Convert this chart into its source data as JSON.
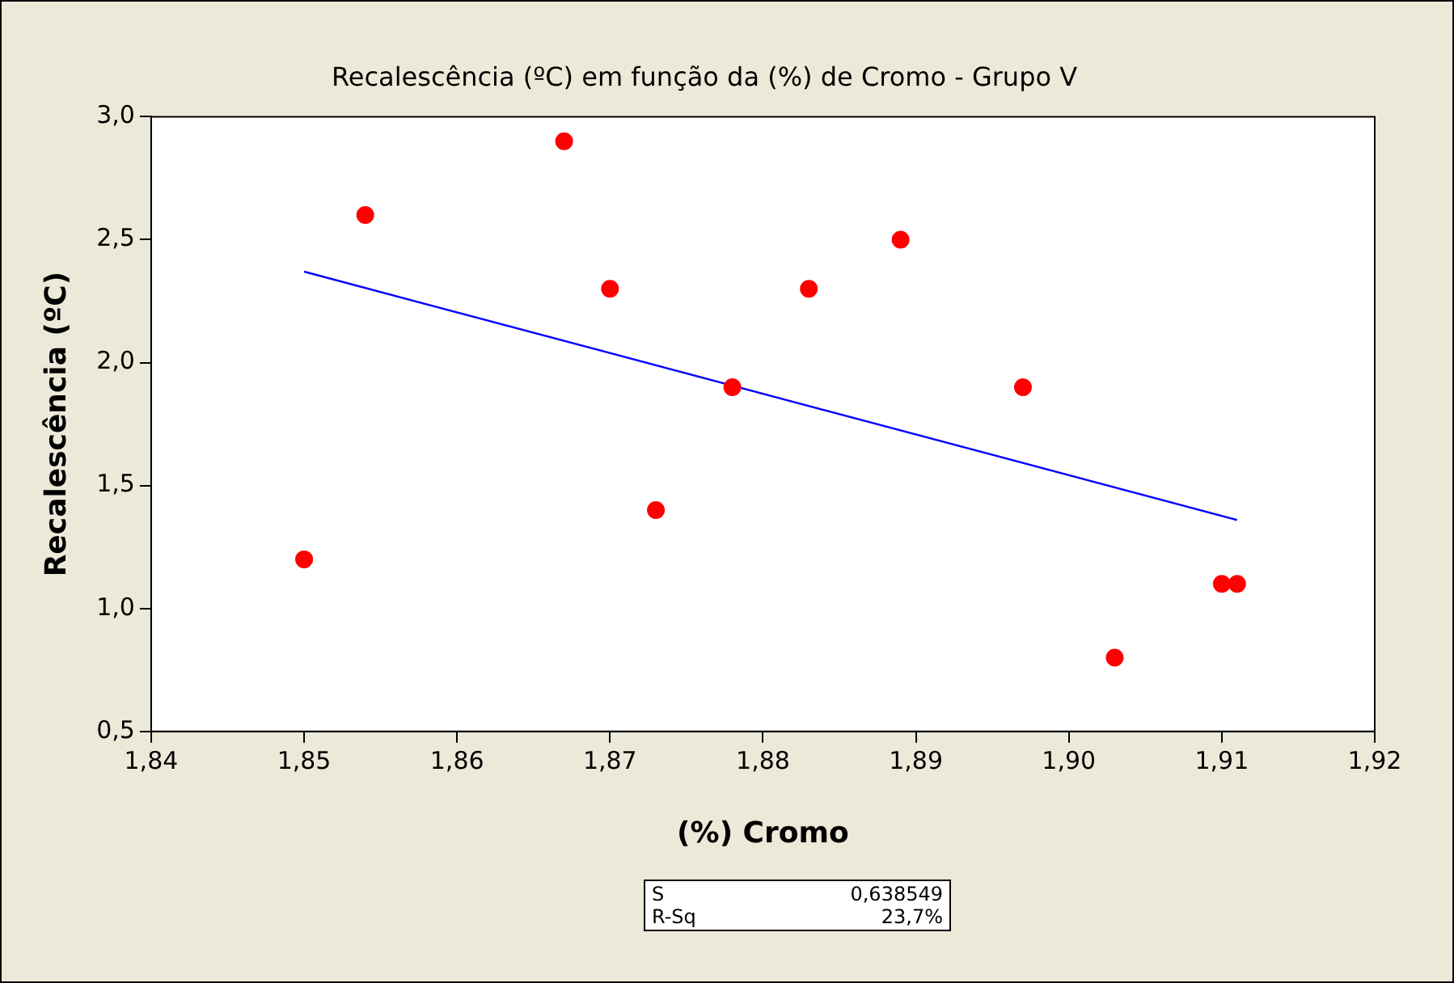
{
  "chart_data": {
    "type": "scatter",
    "title": "Recalescência (ºC) em função da (%) de Cromo - Grupo V",
    "xlabel": "(%) Cromo",
    "ylabel": "Recalescência (ºC)",
    "series": [
      {
        "type": "scatter",
        "color": "#ff0000",
        "marker": "circle",
        "x": [
          1.85,
          1.854,
          1.867,
          1.87,
          1.873,
          1.878,
          1.883,
          1.889,
          1.897,
          1.903,
          1.91,
          1.911
        ],
        "values": [
          1.2,
          2.6,
          2.9,
          2.3,
          1.4,
          1.9,
          2.3,
          2.5,
          1.9,
          0.8,
          1.1,
          1.1
        ]
      },
      {
        "type": "line",
        "color": "#0000ff",
        "marker": "none",
        "x": [
          1.85,
          1.911
        ],
        "values": [
          2.37,
          1.36
        ]
      }
    ],
    "xlim": [
      1.84,
      1.92
    ],
    "xticks": [
      {
        "value": 1.84,
        "label": "1,84"
      },
      {
        "value": 1.85,
        "label": "1,85"
      },
      {
        "value": 1.86,
        "label": "1,86"
      },
      {
        "value": 1.87,
        "label": "1,87"
      },
      {
        "value": 1.88,
        "label": "1,88"
      },
      {
        "value": 1.89,
        "label": "1,89"
      },
      {
        "value": 1.9,
        "label": "1,90"
      },
      {
        "value": 1.91,
        "label": "1,91"
      },
      {
        "value": 1.92,
        "label": "1,92"
      }
    ],
    "ylim": [
      0.5,
      3.0
    ],
    "yticks": [
      {
        "value": 0.5,
        "label": "0,5"
      },
      {
        "value": 1.0,
        "label": "1,0"
      },
      {
        "value": 1.5,
        "label": "1,5"
      },
      {
        "value": 2.0,
        "label": "2,0"
      },
      {
        "value": 2.5,
        "label": "2,5"
      },
      {
        "value": 3.0,
        "label": "3,0"
      }
    ],
    "grid": false,
    "legend": false,
    "annotations": [
      "S",
      "0,638549",
      "R-Sq",
      "23,7%"
    ]
  }
}
